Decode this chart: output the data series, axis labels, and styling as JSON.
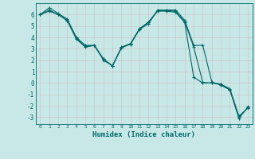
{
  "xlabel": "Humidex (Indice chaleur)",
  "background_color": "#c8e8e8",
  "grid_color": "#b0c8c8",
  "line_color": "#006868",
  "xlim": [
    -0.5,
    23.5
  ],
  "ylim": [
    -3.6,
    7.0
  ],
  "yticks": [
    -3,
    -2,
    -1,
    0,
    1,
    2,
    3,
    4,
    5,
    6
  ],
  "xticks": [
    0,
    1,
    2,
    3,
    4,
    5,
    6,
    7,
    8,
    9,
    10,
    11,
    12,
    13,
    14,
    15,
    16,
    17,
    18,
    19,
    20,
    21,
    22,
    23
  ],
  "series1": [
    6.0,
    6.6,
    6.1,
    5.6,
    4.0,
    3.3,
    3.3,
    2.0,
    1.5,
    3.1,
    3.4,
    4.7,
    5.2,
    6.4,
    6.4,
    6.4,
    5.5,
    3.3,
    3.3,
    0.1,
    -0.2,
    -0.6,
    -3.1,
    -2.1
  ],
  "series2": [
    6.0,
    6.4,
    6.0,
    5.5,
    3.9,
    3.2,
    3.3,
    2.1,
    1.5,
    3.15,
    3.45,
    4.75,
    5.35,
    6.35,
    6.35,
    6.3,
    5.35,
    3.15,
    0.05,
    0.0,
    -0.1,
    -0.6,
    -3.0,
    -2.15
  ],
  "series3": [
    6.0,
    6.3,
    6.0,
    5.45,
    3.85,
    3.15,
    3.3,
    2.1,
    1.5,
    3.1,
    3.45,
    4.75,
    5.35,
    6.3,
    6.3,
    6.2,
    5.3,
    0.5,
    0.0,
    0.0,
    -0.1,
    -0.5,
    -2.9,
    -2.2
  ]
}
